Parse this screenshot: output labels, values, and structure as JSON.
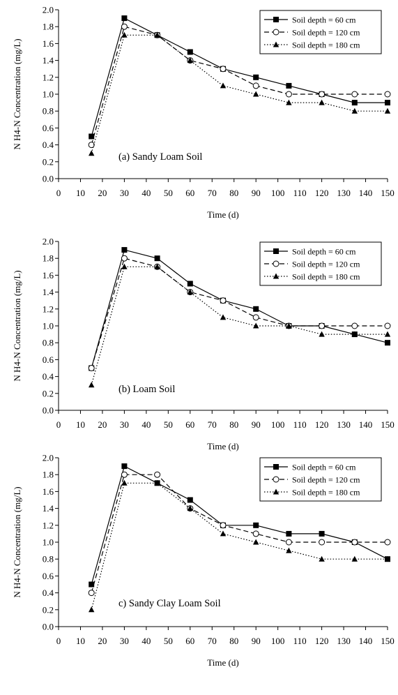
{
  "chart_data": [
    {
      "type": "line",
      "panel": "a",
      "annotation": "(a) Sandy Loam Soil",
      "xlabel": "Time (d)",
      "ylabel": "N H4-N Concentration (mg/L)",
      "xlim": [
        0,
        150
      ],
      "ylim": [
        0,
        2.0
      ],
      "x_ticks": [
        0,
        10,
        20,
        30,
        40,
        50,
        60,
        70,
        80,
        90,
        100,
        110,
        120,
        130,
        140,
        150
      ],
      "y_ticks": [
        0.0,
        0.2,
        0.4,
        0.6,
        0.8,
        1.0,
        1.2,
        1.4,
        1.6,
        1.8,
        2.0
      ],
      "legend_position": "top-right",
      "x": [
        15,
        30,
        45,
        60,
        75,
        90,
        105,
        120,
        135,
        150
      ],
      "series": [
        {
          "name": "Soil depth = 60 cm",
          "style": "solid-square",
          "values": [
            0.5,
            1.9,
            1.7,
            1.5,
            1.3,
            1.2,
            1.1,
            1.0,
            0.9,
            0.9
          ]
        },
        {
          "name": "Soil depth = 120 cm",
          "style": "dashed-circle",
          "values": [
            0.4,
            1.8,
            1.7,
            1.4,
            1.3,
            1.1,
            1.0,
            1.0,
            1.0,
            1.0
          ]
        },
        {
          "name": "Soil depth = 180 cm",
          "style": "dotted-triangle",
          "values": [
            0.3,
            1.7,
            1.7,
            1.4,
            1.1,
            1.0,
            0.9,
            0.9,
            0.8,
            0.8
          ]
        }
      ]
    },
    {
      "type": "line",
      "panel": "b",
      "annotation": "(b) Loam Soil",
      "xlabel": "Time (d)",
      "ylabel": "N H4-N Concentration (mg/L)",
      "xlim": [
        0,
        150
      ],
      "ylim": [
        0,
        2.0
      ],
      "x_ticks": [
        0,
        10,
        20,
        30,
        40,
        50,
        60,
        70,
        80,
        90,
        100,
        110,
        120,
        130,
        140,
        150
      ],
      "y_ticks": [
        0.0,
        0.2,
        0.4,
        0.6,
        0.8,
        1.0,
        1.2,
        1.4,
        1.6,
        1.8,
        2.0
      ],
      "legend_position": "top-right",
      "x": [
        15,
        30,
        45,
        60,
        75,
        90,
        105,
        120,
        135,
        150
      ],
      "series": [
        {
          "name": "Soil depth = 60 cm",
          "style": "solid-square",
          "values": [
            0.5,
            1.9,
            1.8,
            1.5,
            1.3,
            1.2,
            1.0,
            1.0,
            0.9,
            0.8
          ]
        },
        {
          "name": "Soil depth = 120 cm",
          "style": "dashed-circle",
          "values": [
            0.5,
            1.8,
            1.7,
            1.4,
            1.3,
            1.1,
            1.0,
            1.0,
            1.0,
            1.0
          ]
        },
        {
          "name": "Soil depth = 180 cm",
          "style": "dotted-triangle",
          "values": [
            0.3,
            1.7,
            1.7,
            1.4,
            1.1,
            1.0,
            1.0,
            0.9,
            0.9,
            0.9
          ]
        }
      ]
    },
    {
      "type": "line",
      "panel": "c",
      "annotation": "c) Sandy Clay Loam Soil",
      "xlabel": "Time (d)",
      "ylabel": "N H4-N Concentration (mg/L)",
      "xlim": [
        0,
        150
      ],
      "ylim": [
        0,
        2.0
      ],
      "x_ticks": [
        0,
        10,
        20,
        30,
        40,
        50,
        60,
        70,
        80,
        90,
        100,
        110,
        120,
        130,
        140,
        150
      ],
      "y_ticks": [
        0.0,
        0.2,
        0.4,
        0.6,
        0.8,
        1.0,
        1.2,
        1.4,
        1.6,
        1.8,
        2.0
      ],
      "legend_position": "top-right",
      "x": [
        15,
        30,
        45,
        60,
        75,
        90,
        105,
        120,
        135,
        150
      ],
      "series": [
        {
          "name": "Soil depth = 60 cm",
          "style": "solid-square",
          "values": [
            0.5,
            1.9,
            1.7,
            1.5,
            1.2,
            1.2,
            1.1,
            1.1,
            1.0,
            0.8
          ]
        },
        {
          "name": "Soil depth = 120 cm",
          "style": "dashed-circle",
          "values": [
            0.4,
            1.8,
            1.8,
            1.4,
            1.2,
            1.1,
            1.0,
            1.0,
            1.0,
            1.0
          ]
        },
        {
          "name": "Soil depth = 180 cm",
          "style": "dotted-triangle",
          "values": [
            0.2,
            1.7,
            1.7,
            1.4,
            1.1,
            1.0,
            0.9,
            0.8,
            0.8,
            0.8
          ]
        }
      ]
    }
  ]
}
